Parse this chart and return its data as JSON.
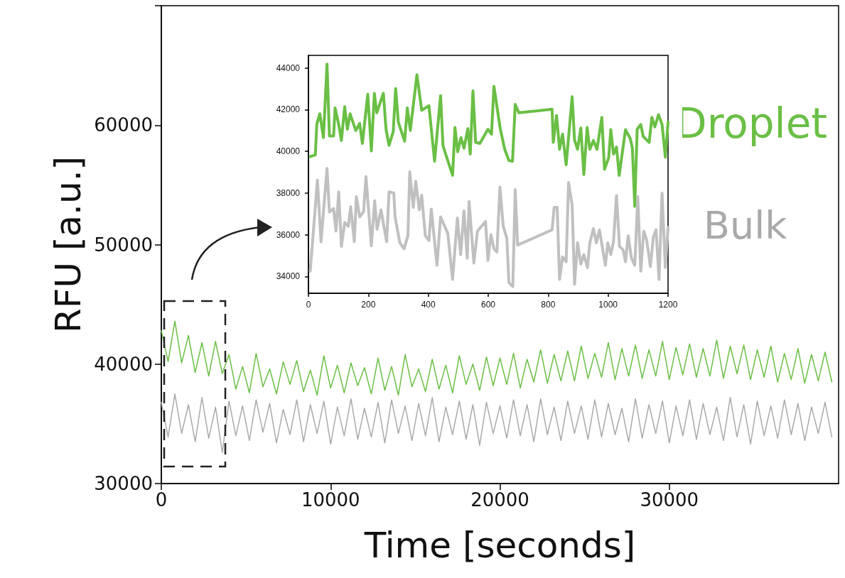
{
  "chart_data": [
    {
      "type": "line",
      "xlabel": "Time [seconds]",
      "ylabel": "RFU [a.u.]",
      "xlim": [
        0,
        40000
      ],
      "ylim": [
        30000,
        70000
      ],
      "xticks": [
        0,
        10000,
        20000,
        30000
      ],
      "yticks": [
        30000,
        40000,
        50000,
        60000,
        {
          "value": 70000,
          "label": null
        }
      ],
      "marker": "none",
      "line_style": "solid",
      "grid": false,
      "legend": false,
      "x": [
        0,
        400,
        800,
        1200,
        1600,
        2000,
        2400,
        2800,
        3200,
        3600,
        4000,
        4400,
        4800,
        5200,
        5600,
        6000,
        6400,
        6800,
        7200,
        7600,
        8000,
        8400,
        8800,
        9200,
        9600,
        10000,
        10400,
        10800,
        11200,
        11600,
        12000,
        12400,
        12800,
        13200,
        13600,
        14000,
        14400,
        14800,
        15200,
        15600,
        16000,
        16400,
        16800,
        17200,
        17600,
        18000,
        18400,
        18800,
        19200,
        19600,
        20000,
        20400,
        20800,
        21200,
        21600,
        22000,
        22400,
        22800,
        23200,
        23600,
        24000,
        24400,
        24800,
        25200,
        25600,
        26000,
        26400,
        26800,
        27200,
        27600,
        28000,
        28400,
        28800,
        29200,
        29600,
        30000,
        30400,
        30800,
        31200,
        31600,
        32000,
        32400,
        32800,
        33200,
        33600,
        34000,
        34400,
        34800,
        35200,
        35600,
        36000,
        36400,
        36800,
        37200,
        37600,
        38000,
        38400,
        38800,
        39200,
        39600
      ],
      "series": [
        {
          "name": "Droplet",
          "color": "#6abf45",
          "values": [
            42800,
            40200,
            43600,
            40100,
            42400,
            39300,
            41800,
            39000,
            41900,
            39200,
            40800,
            37900,
            39800,
            37600,
            40900,
            38100,
            39600,
            37500,
            40200,
            38300,
            40300,
            37700,
            39500,
            37400,
            40700,
            38000,
            39900,
            37600,
            40100,
            38200,
            39700,
            37500,
            40500,
            37800,
            39800,
            37400,
            40800,
            38100,
            39600,
            37700,
            40400,
            37900,
            39900,
            37600,
            40700,
            38300,
            40000,
            37800,
            40600,
            38200,
            40500,
            38300,
            40900,
            38000,
            40400,
            38500,
            41200,
            38400,
            40800,
            38600,
            41100,
            38600,
            41500,
            38800,
            40900,
            38900,
            41800,
            38700,
            41300,
            39000,
            41600,
            38800,
            41200,
            39000,
            41900,
            38700,
            41400,
            39100,
            41700,
            38900,
            41300,
            39000,
            42000,
            38800,
            41500,
            39200,
            41600,
            38700,
            41200,
            38900,
            41500,
            38500,
            40900,
            38700,
            41300,
            38400,
            40800,
            38600,
            41000,
            38500
          ]
        },
        {
          "name": "Bulk",
          "color": "#a9a9a9",
          "values": [
            36800,
            33900,
            37500,
            34200,
            36600,
            33500,
            37200,
            33800,
            36400,
            32600,
            36900,
            34000,
            36500,
            33600,
            37000,
            34300,
            36700,
            33400,
            36200,
            34100,
            37000,
            33500,
            36600,
            34200,
            36900,
            33300,
            36400,
            34000,
            37100,
            33700,
            36300,
            33900,
            36800,
            33400,
            37000,
            34200,
            36500,
            33600,
            36700,
            34000,
            37200,
            33500,
            36400,
            34100,
            36900,
            33700,
            36600,
            33200,
            36800,
            34200,
            36500,
            33800,
            37000,
            34000,
            36600,
            33500,
            37100,
            34100,
            36400,
            33600,
            36900,
            34200,
            36500,
            33700,
            37000,
            33900,
            36700,
            34100,
            36300,
            33500,
            37100,
            33800,
            36600,
            34200,
            36900,
            33400,
            36500,
            34000,
            37000,
            33700,
            36700,
            34100,
            36400,
            33600,
            37200,
            33900,
            36600,
            33300,
            36900,
            34000,
            36500,
            33800,
            37000,
            34100,
            36700,
            33600,
            36400,
            34200,
            36800,
            33900
          ]
        }
      ]
    },
    {
      "type": "line",
      "xlim": [
        0,
        1200
      ],
      "ylim": [
        33200,
        44600
      ],
      "xticks": [
        0,
        200,
        400,
        600,
        800,
        1000,
        1200
      ],
      "yticks": [
        34000,
        36000,
        38000,
        40000,
        42000,
        44000
      ],
      "marker": "none",
      "line_style": "solid",
      "grid": false,
      "legend": false,
      "series": [
        {
          "color": "#6abf45",
          "x": [
            6,
            23,
            28,
            38,
            50,
            62,
            70,
            84,
            89,
            101,
            110,
            121,
            130,
            139,
            158,
            171,
            180,
            198,
            210,
            220,
            228,
            250,
            259,
            269,
            283,
            291,
            300,
            321,
            330,
            340,
            362,
            378,
            402,
            421,
            441,
            449,
            481,
            489,
            498,
            509,
            519,
            532,
            540,
            549,
            558,
            572,
            599,
            611,
            619,
            640,
            655,
            669,
            681,
            690,
            702,
            813,
            817,
            828,
            838,
            848,
            860,
            880,
            888,
            898,
            909,
            919,
            930,
            939,
            951,
            963,
            979,
            988,
            1002,
            1009,
            1018,
            1028,
            1037,
            1058,
            1074,
            1081,
            1089,
            1097,
            1109,
            1117,
            1137,
            1146,
            1156,
            1168,
            1180,
            1191,
            1200
          ],
          "values": [
            39750,
            39830,
            41310,
            41800,
            40660,
            44180,
            40740,
            40740,
            42080,
            41290,
            40520,
            42140,
            41060,
            41800,
            41000,
            41340,
            40380,
            42740,
            40020,
            42780,
            41850,
            42780,
            41060,
            40290,
            40950,
            43010,
            41400,
            40490,
            42080,
            41000,
            43670,
            41970,
            42190,
            39530,
            42670,
            40270,
            38850,
            41150,
            39980,
            40660,
            40150,
            41090,
            39870,
            42900,
            40430,
            40380,
            41060,
            40830,
            43120,
            41090,
            40100,
            39560,
            39530,
            42250,
            41850,
            42020,
            40430,
            41720,
            40100,
            40830,
            39360,
            42620,
            40540,
            40100,
            41120,
            38890,
            41150,
            40100,
            40520,
            40100,
            41630,
            39140,
            39700,
            41040,
            39870,
            40210,
            38850,
            41040,
            40610,
            40150,
            37370,
            41060,
            41290,
            40720,
            40430,
            41630,
            41170,
            41760,
            41290,
            39720,
            41400
          ]
        },
        {
          "color": "#c0c0c0",
          "x": [
            6,
            30,
            42,
            62,
            70,
            84,
            92,
            101,
            110,
            121,
            133,
            141,
            153,
            160,
            171,
            184,
            192,
            210,
            221,
            229,
            242,
            261,
            269,
            285,
            289,
            305,
            319,
            332,
            338,
            350,
            358,
            370,
            378,
            390,
            402,
            410,
            429,
            441,
            465,
            481,
            497,
            508,
            519,
            530,
            536,
            552,
            564,
            591,
            599,
            609,
            619,
            629,
            639,
            650,
            662,
            669,
            682,
            690,
            698,
            813,
            820,
            830,
            838,
            848,
            860,
            868,
            880,
            888,
            898,
            909,
            919,
            931,
            939,
            951,
            961,
            971,
            991,
            999,
            1009,
            1018,
            1028,
            1038,
            1050,
            1058,
            1067,
            1078,
            1089,
            1099,
            1109,
            1119,
            1129,
            1141,
            1151,
            1160,
            1170,
            1180,
            1191,
            1200
          ],
          "values": [
            34260,
            38620,
            35670,
            39180,
            37090,
            37260,
            36180,
            38060,
            35450,
            36590,
            36410,
            37340,
            35670,
            37830,
            36860,
            37110,
            38790,
            35480,
            37630,
            36270,
            37200,
            35670,
            38060,
            38000,
            36860,
            35620,
            35330,
            35960,
            39020,
            37320,
            38570,
            37200,
            37900,
            35960,
            35730,
            37230,
            34540,
            36860,
            36070,
            33860,
            36810,
            35050,
            37150,
            34880,
            37600,
            34650,
            36180,
            36640,
            34770,
            36010,
            35330,
            35180,
            38290,
            36410,
            35840,
            33710,
            33520,
            38170,
            35510,
            36240,
            37320,
            37320,
            33860,
            34940,
            34710,
            38510,
            37430,
            33630,
            35620,
            34600,
            35050,
            34430,
            35620,
            36300,
            35620,
            36240,
            34540,
            35620,
            35050,
            35670,
            37880,
            35450,
            35280,
            34710,
            35960,
            34880,
            34540,
            37830,
            34260,
            36180,
            35730,
            34480,
            35900,
            36240,
            33860,
            38000,
            34430,
            36360
          ]
        }
      ]
    }
  ]
}
